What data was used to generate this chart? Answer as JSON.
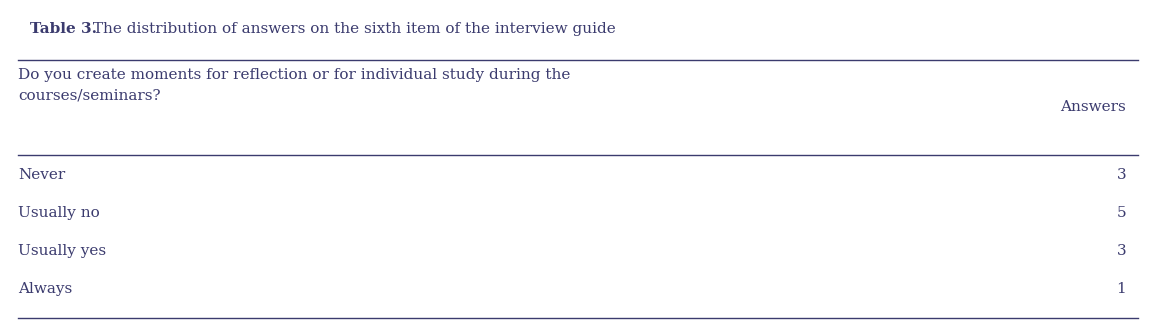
{
  "title_bold": "Table 3.",
  "title_normal": " The distribution of answers on the sixth item of the interview guide",
  "header_col1": "Do you create moments for reflection or for individual study during the\ncourses/seminars?",
  "header_col2": "Answers",
  "rows": [
    [
      "Never",
      "3"
    ],
    [
      "Usually no",
      "5"
    ],
    [
      "Usually yes",
      "3"
    ],
    [
      "Always",
      "1"
    ]
  ],
  "background_color": "#ffffff",
  "text_color": "#3b3b6e",
  "font_size": 11,
  "title_font_size": 11
}
